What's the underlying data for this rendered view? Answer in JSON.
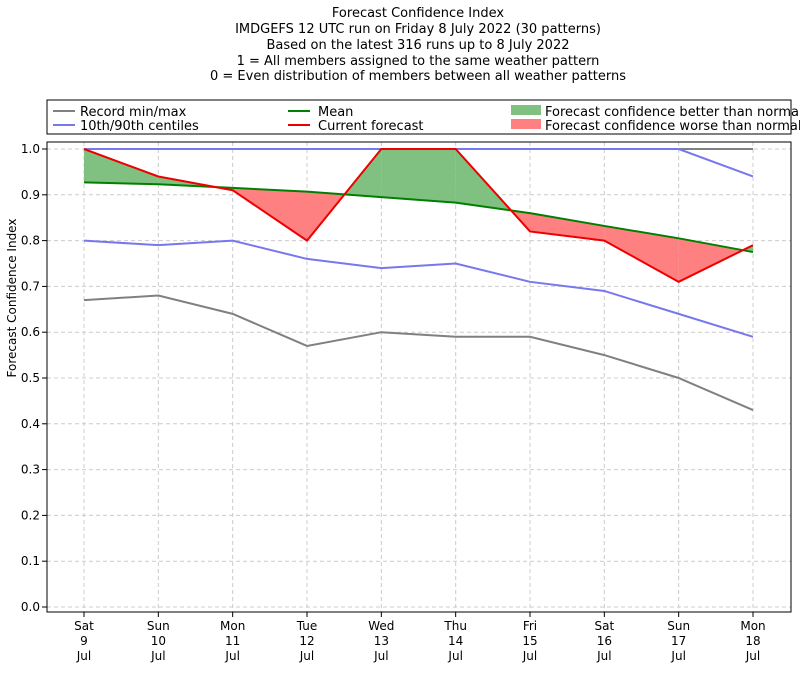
{
  "chart_data": {
    "type": "line",
    "title": [
      "Forecast Confidence Index",
      "IMDGEFS 12 UTC run on Friday 8 July 2022 (30 patterns)",
      "Based on the latest 316 runs up to 8 July 2022",
      "1 = All members assigned to the same weather pattern",
      "0 = Even distribution of members between all weather patterns"
    ],
    "ylabel": "Forecast Confidence Index",
    "xlabel": "",
    "ylim": [
      0.0,
      1.0
    ],
    "yticks": [
      "0.0",
      "0.1",
      "0.2",
      "0.3",
      "0.4",
      "0.5",
      "0.6",
      "0.7",
      "0.8",
      "0.9",
      "1.0"
    ],
    "grid": true,
    "categories": [
      [
        "Sat",
        "9",
        "Jul"
      ],
      [
        "Sun",
        "10",
        "Jul"
      ],
      [
        "Mon",
        "11",
        "Jul"
      ],
      [
        "Tue",
        "12",
        "Jul"
      ],
      [
        "Wed",
        "13",
        "Jul"
      ],
      [
        "Thu",
        "14",
        "Jul"
      ],
      [
        "Fri",
        "15",
        "Jul"
      ],
      [
        "Sat",
        "16",
        "Jul"
      ],
      [
        "Sun",
        "17",
        "Jul"
      ],
      [
        "Mon",
        "18",
        "Jul"
      ]
    ],
    "series": [
      {
        "name": "Record min",
        "color": "#808080",
        "values": [
          0.67,
          0.68,
          0.64,
          0.57,
          0.6,
          0.59,
          0.59,
          0.55,
          0.5,
          0.43
        ]
      },
      {
        "name": "Record max",
        "color": "#808080",
        "values": [
          1.0,
          1.0,
          1.0,
          1.0,
          1.0,
          1.0,
          1.0,
          1.0,
          1.0,
          1.0
        ]
      },
      {
        "name": "10th centile",
        "color": "#7777ee",
        "values": [
          0.8,
          0.79,
          0.8,
          0.76,
          0.74,
          0.75,
          0.71,
          0.69,
          0.64,
          0.59
        ]
      },
      {
        "name": "90th centile",
        "color": "#7777ee",
        "values": [
          1.0,
          1.0,
          1.0,
          1.0,
          1.0,
          1.0,
          1.0,
          1.0,
          1.0,
          0.94
        ]
      },
      {
        "name": "Mean",
        "color": "#008000",
        "values": [
          0.927,
          0.923,
          0.915,
          0.907,
          0.895,
          0.883,
          0.86,
          0.832,
          0.805,
          0.775
        ]
      },
      {
        "name": "Current forecast",
        "color": "#ee0000",
        "values": [
          1.0,
          0.94,
          0.91,
          0.8,
          1.0,
          1.0,
          0.82,
          0.8,
          0.71,
          0.79
        ]
      }
    ],
    "legend": {
      "placement": "top",
      "entries": [
        {
          "label": "Record min/max",
          "kind": "line",
          "color": "#808080"
        },
        {
          "label": "10th/90th centiles",
          "kind": "line",
          "color": "#7777ee"
        },
        {
          "label": "Mean",
          "kind": "line",
          "color": "#008000"
        },
        {
          "label": "Current forecast",
          "kind": "line",
          "color": "#ee0000"
        },
        {
          "label": "Forecast confidence better than normal",
          "kind": "patch",
          "color": "#80c080"
        },
        {
          "label": "Forecast confidence worse than normal",
          "kind": "patch",
          "color": "#ff8080"
        }
      ]
    },
    "fill_colors": {
      "better": "#80c080",
      "worse": "#ff8080"
    }
  }
}
